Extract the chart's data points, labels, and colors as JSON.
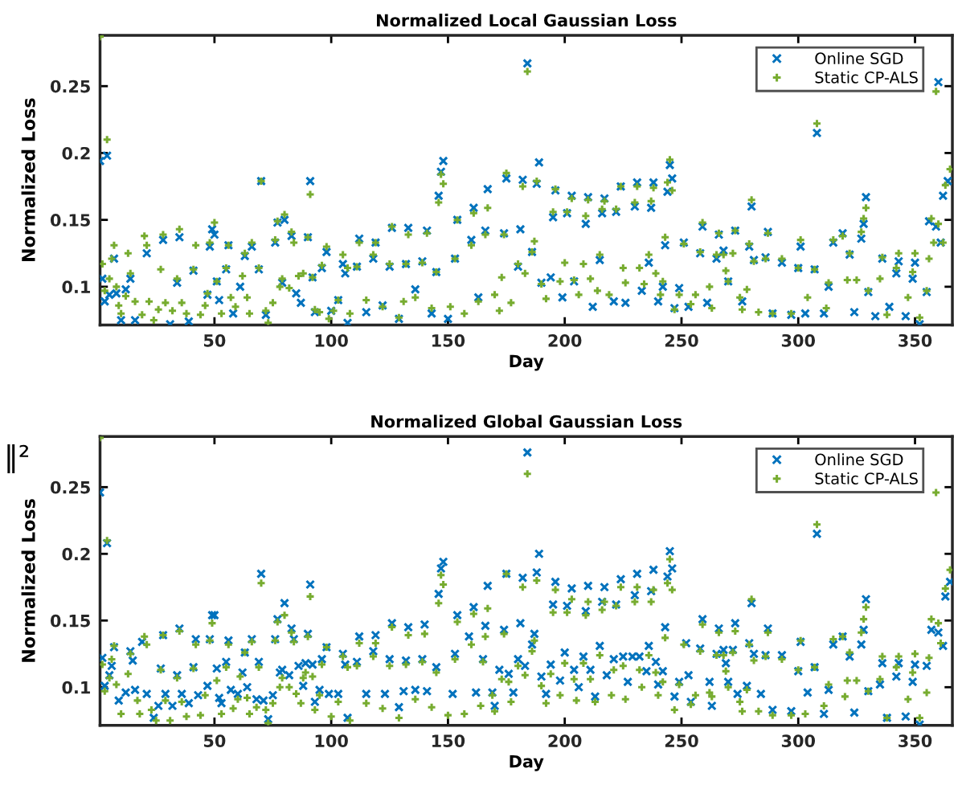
{
  "chart_data": [
    {
      "type": "scatter",
      "title": "Normalized Local Gaussian Loss",
      "xlabel": "Day",
      "ylabel": "Normalized Loss",
      "xlim": [
        1,
        366
      ],
      "ylim": [
        0.0714,
        0.288
      ],
      "xticks": [
        50,
        100,
        150,
        200,
        250,
        300,
        350
      ],
      "yticks": [
        0.1,
        0.15,
        0.2,
        0.25
      ],
      "grid": false,
      "legend": "top right",
      "series": [
        {
          "name": "Online SGD",
          "color": "#0072bd",
          "marker": "cross",
          "x": [
            1,
            4,
            2,
            3,
            5,
            8,
            7,
            10,
            12,
            14,
            16,
            21,
            28,
            31,
            34,
            35,
            39,
            41,
            48,
            49,
            50,
            47,
            51,
            52,
            55,
            56,
            58,
            61,
            63,
            66,
            69,
            70,
            72,
            77,
            76,
            79,
            80,
            83,
            85,
            87,
            90,
            91,
            92,
            93,
            96,
            98,
            100,
            103,
            105,
            106,
            107,
            112,
            111,
            115,
            118,
            119,
            122,
            125,
            126,
            129,
            132,
            133,
            136,
            139,
            141,
            143,
            145,
            146,
            147,
            148,
            150,
            153,
            154,
            160,
            161,
            163,
            166,
            167,
            175,
            174,
            180,
            182,
            181,
            184,
            186,
            188,
            189,
            190,
            194,
            195,
            196,
            199,
            201,
            203,
            204,
            209,
            210,
            212,
            215,
            216,
            217,
            221,
            222,
            224,
            226,
            230,
            231,
            233,
            237,
            238,
            236,
            240,
            242,
            243,
            244,
            245,
            246,
            247,
            249,
            251,
            253,
            258,
            259,
            261,
            265,
            266,
            268,
            270,
            273,
            276,
            279,
            280,
            281,
            286,
            287,
            289,
            293,
            297,
            301,
            300,
            303,
            307,
            308,
            311,
            315,
            313,
            319,
            322,
            324,
            327,
            328,
            329,
            330,
            333,
            336,
            339,
            342,
            343,
            346,
            349,
            350,
            352,
            355,
            356,
            359,
            361,
            362,
            364,
            360
          ],
          "values": [
            0.194,
            0.198,
            0.106,
            0.089,
            0.094,
            0.095,
            0.121,
            0.075,
            0.098,
            0.106,
            0.075,
            0.125,
            0.135,
            0.072,
            0.103,
            0.137,
            0.074,
            0.112,
            0.13,
            0.143,
            0.139,
            0.094,
            0.104,
            0.09,
            0.113,
            0.131,
            0.08,
            0.1,
            0.123,
            0.13,
            0.113,
            0.179,
            0.079,
            0.148,
            0.133,
            0.103,
            0.15,
            0.138,
            0.095,
            0.088,
            0.137,
            0.179,
            0.107,
            0.081,
            0.114,
            0.126,
            0.082,
            0.09,
            0.117,
            0.11,
            0.073,
            0.136,
            0.115,
            0.081,
            0.121,
            0.133,
            0.086,
            0.115,
            0.144,
            0.076,
            0.117,
            0.144,
            0.098,
            0.119,
            0.142,
            0.08,
            0.111,
            0.168,
            0.186,
            0.194,
            0.076,
            0.121,
            0.15,
            0.135,
            0.159,
            0.092,
            0.142,
            0.173,
            0.181,
            0.14,
            0.115,
            0.18,
            0.143,
            0.267,
            0.126,
            0.177,
            0.193,
            0.103,
            0.107,
            0.152,
            0.172,
            0.092,
            0.155,
            0.168,
            0.104,
            0.147,
            0.167,
            0.085,
            0.12,
            0.155,
            0.166,
            0.089,
            0.156,
            0.175,
            0.088,
            0.16,
            0.178,
            0.097,
            0.159,
            0.178,
            0.118,
            0.089,
            0.1,
            0.131,
            0.171,
            0.191,
            0.181,
            0.084,
            0.099,
            0.133,
            0.085,
            0.125,
            0.145,
            0.088,
            0.121,
            0.139,
            0.127,
            0.104,
            0.142,
            0.089,
            0.13,
            0.16,
            0.12,
            0.122,
            0.141,
            0.08,
            0.118,
            0.079,
            0.13,
            0.114,
            0.08,
            0.113,
            0.215,
            0.08,
            0.133,
            0.1,
            0.14,
            0.124,
            0.081,
            0.136,
            0.147,
            0.167,
            0.096,
            0.078,
            0.121,
            0.085,
            0.11,
            0.119,
            0.078,
            0.106,
            0.118,
            0.072,
            0.096,
            0.149,
            0.145,
            0.133,
            0.168,
            0.179,
            0.253
          ]
        },
        {
          "name": "Static CP-ALS",
          "color": "#77ac30",
          "marker": "plus",
          "x": [
            1,
            2,
            4,
            3,
            6,
            7,
            5,
            8,
            9,
            10,
            12,
            13,
            14,
            16,
            19,
            20,
            21,
            22,
            24,
            26,
            27,
            28,
            29,
            32,
            34,
            35,
            36,
            38,
            41,
            42,
            44,
            46,
            47,
            48,
            50,
            51,
            53,
            55,
            56,
            57,
            59,
            62,
            63,
            64,
            66,
            65,
            69,
            70,
            72,
            73,
            75,
            76,
            77,
            78,
            79,
            80,
            82,
            83,
            84,
            86,
            88,
            90,
            91,
            92,
            93,
            95,
            96,
            98,
            99,
            101,
            103,
            105,
            107,
            108,
            111,
            112,
            115,
            118,
            119,
            122,
            125,
            126,
            129,
            131,
            132,
            133,
            136,
            139,
            141,
            143,
            145,
            146,
            147,
            148,
            151,
            153,
            154,
            157,
            160,
            161,
            163,
            166,
            167,
            170,
            172,
            173,
            175,
            174,
            177,
            180,
            182,
            183,
            184,
            186,
            187,
            188,
            190,
            192,
            195,
            196,
            198,
            201,
            200,
            204,
            203,
            206,
            208,
            209,
            210,
            211,
            214,
            215,
            216,
            217,
            219,
            222,
            224,
            225,
            226,
            230,
            231,
            232,
            234,
            236,
            237,
            238,
            239,
            241,
            242,
            243,
            244,
            245,
            246,
            247,
            249,
            251,
            254,
            256,
            259,
            258,
            262,
            263,
            265,
            266,
            268,
            269,
            270,
            272,
            273,
            275,
            276,
            278,
            279,
            280,
            281,
            283,
            286,
            287,
            289,
            293,
            297,
            301,
            300,
            304,
            307,
            308,
            312,
            313,
            315,
            319,
            321,
            322,
            325,
            327,
            328,
            329,
            330,
            335,
            336,
            338,
            342,
            343,
            347,
            349,
            350,
            352,
            355,
            356,
            357,
            358,
            360,
            362,
            363,
            365,
            359
          ],
          "values": [
            0.287,
            0.117,
            0.21,
            0.097,
            0.121,
            0.131,
            0.106,
            0.1,
            0.086,
            0.08,
            0.093,
            0.125,
            0.11,
            0.089,
            0.079,
            0.138,
            0.131,
            0.089,
            0.075,
            0.083,
            0.113,
            0.139,
            0.088,
            0.082,
            0.106,
            0.143,
            0.088,
            0.08,
            0.113,
            0.131,
            0.079,
            0.086,
            0.095,
            0.133,
            0.148,
            0.104,
            0.08,
            0.114,
            0.131,
            0.092,
            0.085,
            0.108,
            0.125,
            0.092,
            0.133,
            0.08,
            0.114,
            0.179,
            0.082,
            0.073,
            0.088,
            0.135,
            0.149,
            0.1,
            0.106,
            0.154,
            0.099,
            0.141,
            0.133,
            0.108,
            0.11,
            0.137,
            0.169,
            0.107,
            0.083,
            0.081,
            0.116,
            0.13,
            0.076,
            0.082,
            0.09,
            0.124,
            0.114,
            0.08,
            0.115,
            0.133,
            0.09,
            0.124,
            0.133,
            0.085,
            0.117,
            0.145,
            0.077,
            0.089,
            0.117,
            0.139,
            0.092,
            0.118,
            0.14,
            0.084,
            0.111,
            0.163,
            0.184,
            0.177,
            0.085,
            0.121,
            0.15,
            0.08,
            0.131,
            0.155,
            0.089,
            0.139,
            0.159,
            0.094,
            0.082,
            0.107,
            0.185,
            0.139,
            0.088,
            0.117,
            0.175,
            0.11,
            0.261,
            0.126,
            0.134,
            0.179,
            0.102,
            0.091,
            0.156,
            0.173,
            0.104,
            0.156,
            0.118,
            0.105,
            0.166,
            0.094,
            0.117,
            0.153,
            0.165,
            0.106,
            0.097,
            0.124,
            0.158,
            0.164,
            0.094,
            0.158,
            0.175,
            0.114,
            0.103,
            0.163,
            0.175,
            0.114,
            0.102,
            0.124,
            0.164,
            0.174,
            0.11,
            0.094,
            0.104,
            0.137,
            0.178,
            0.195,
            0.172,
            0.083,
            0.094,
            0.132,
            0.087,
            0.094,
            0.148,
            0.126,
            0.1,
            0.084,
            0.124,
            0.14,
            0.124,
            0.112,
            0.104,
            0.125,
            0.142,
            0.092,
            0.083,
            0.098,
            0.132,
            0.165,
            0.119,
            0.081,
            0.121,
            0.14,
            0.08,
            0.121,
            0.08,
            0.135,
            0.114,
            0.092,
            0.113,
            0.222,
            0.084,
            0.103,
            0.135,
            0.138,
            0.105,
            0.125,
            0.105,
            0.141,
            0.151,
            0.159,
            0.097,
            0.106,
            0.122,
            0.079,
            0.114,
            0.125,
            0.092,
            0.111,
            0.125,
            0.077,
            0.097,
            0.121,
            0.151,
            0.133,
            0.147,
            0.133,
            0.176,
            0.188,
            0.246
          ]
        }
      ]
    },
    {
      "type": "scatter",
      "title": "Normalized Global Gaussian Loss",
      "xlabel": "Day",
      "ylabel": "Normalized Loss",
      "xlim": [
        1,
        366
      ],
      "ylim": [
        0.0714,
        0.288
      ],
      "xticks": [
        50,
        100,
        150,
        200,
        250,
        300,
        350
      ],
      "yticks": [
        0.1,
        0.15,
        0.2,
        0.25
      ],
      "grid": false,
      "legend": "top right",
      "annotations": [
        "‖²"
      ],
      "series": [
        {
          "name": "Online SGD",
          "color": "#0072bd",
          "marker": "cross",
          "x": [
            1,
            2,
            4,
            3,
            5,
            6,
            7,
            9,
            12,
            14,
            15,
            16,
            19,
            21,
            24,
            26,
            27,
            28,
            29,
            32,
            34,
            35,
            36,
            39,
            41,
            42,
            43,
            47,
            48,
            49,
            50,
            51,
            52,
            53,
            55,
            56,
            57,
            60,
            62,
            63,
            64,
            66,
            68,
            69,
            70,
            71,
            73,
            75,
            76,
            77,
            78,
            79,
            80,
            82,
            83,
            84,
            86,
            88,
            89,
            90,
            91,
            92,
            93,
            95,
            96,
            98,
            99,
            103,
            105,
            106,
            107,
            111,
            112,
            115,
            118,
            119,
            123,
            125,
            126,
            129,
            131,
            132,
            133,
            136,
            139,
            140,
            141,
            145,
            146,
            147,
            148,
            152,
            153,
            154,
            159,
            161,
            162,
            166,
            167,
            165,
            169,
            170,
            172,
            175,
            174,
            176,
            178,
            180,
            182,
            181,
            183,
            184,
            186,
            187,
            188,
            189,
            190,
            192,
            194,
            195,
            196,
            198,
            200,
            201,
            203,
            204,
            206,
            208,
            209,
            210,
            211,
            213,
            215,
            216,
            217,
            218,
            221,
            222,
            224,
            225,
            227,
            229,
            230,
            231,
            232,
            235,
            236,
            237,
            238,
            239,
            240,
            242,
            243,
            244,
            245,
            246,
            247,
            249,
            252,
            253,
            254,
            258,
            259,
            262,
            263,
            265,
            266,
            268,
            269,
            270,
            272,
            273,
            274,
            278,
            279,
            280,
            281,
            284,
            286,
            287,
            289,
            293,
            297,
            300,
            301,
            304,
            307,
            308,
            311,
            315,
            313,
            319,
            322,
            324,
            327,
            328,
            329,
            330,
            335,
            336,
            338,
            342,
            343,
            346,
            349,
            350,
            352,
            355,
            357,
            360,
            362,
            363,
            365
          ],
          "values": [
            0.246,
            0.122,
            0.208,
            0.101,
            0.109,
            0.116,
            0.13,
            0.09,
            0.096,
            0.127,
            0.12,
            0.098,
            0.134,
            0.095,
            0.077,
            0.086,
            0.114,
            0.139,
            0.095,
            0.086,
            0.109,
            0.144,
            0.095,
            0.088,
            0.115,
            0.136,
            0.094,
            0.101,
            0.136,
            0.154,
            0.154,
            0.114,
            0.092,
            0.088,
            0.119,
            0.135,
            0.098,
            0.095,
            0.111,
            0.126,
            0.1,
            0.136,
            0.091,
            0.119,
            0.185,
            0.09,
            0.076,
            0.094,
            0.136,
            0.151,
            0.111,
            0.113,
            0.163,
            0.109,
            0.144,
            0.136,
            0.116,
            0.101,
            0.118,
            0.14,
            0.177,
            0.117,
            0.089,
            0.098,
            0.121,
            0.13,
            0.095,
            0.095,
            0.125,
            0.117,
            0.077,
            0.119,
            0.138,
            0.095,
            0.127,
            0.139,
            0.095,
            0.121,
            0.148,
            0.085,
            0.097,
            0.12,
            0.145,
            0.098,
            0.121,
            0.147,
            0.097,
            0.115,
            0.17,
            0.189,
            0.194,
            0.095,
            0.125,
            0.154,
            0.138,
            0.16,
            0.096,
            0.146,
            0.176,
            0.121,
            0.096,
            0.086,
            0.113,
            0.185,
            0.143,
            0.11,
            0.096,
            0.121,
            0.182,
            0.148,
            0.116,
            0.276,
            0.132,
            0.14,
            0.186,
            0.2,
            0.108,
            0.095,
            0.117,
            0.162,
            0.179,
            0.105,
            0.126,
            0.161,
            0.174,
            0.113,
            0.1,
            0.123,
            0.157,
            0.176,
            0.113,
            0.093,
            0.131,
            0.164,
            0.175,
            0.109,
            0.121,
            0.162,
            0.181,
            0.123,
            0.104,
            0.123,
            0.169,
            0.185,
            0.123,
            0.112,
            0.131,
            0.172,
            0.188,
            0.119,
            0.102,
            0.112,
            0.145,
            0.183,
            0.202,
            0.189,
            0.093,
            0.104,
            0.133,
            0.109,
            0.089,
            0.129,
            0.151,
            0.104,
            0.086,
            0.125,
            0.144,
            0.128,
            0.118,
            0.104,
            0.128,
            0.148,
            0.095,
            0.101,
            0.133,
            0.163,
            0.125,
            0.095,
            0.124,
            0.144,
            0.083,
            0.124,
            0.082,
            0.112,
            0.134,
            0.096,
            0.115,
            0.215,
            0.08,
            0.132,
            0.098,
            0.138,
            0.123,
            0.081,
            0.132,
            0.143,
            0.166,
            0.097,
            0.102,
            0.118,
            0.077,
            0.108,
            0.118,
            0.078,
            0.104,
            0.117,
            0.072,
            0.116,
            0.143,
            0.141,
            0.131,
            0.168,
            0.179
          ]
        },
        {
          "name": "Static CP-ALS",
          "color": "#77ac30",
          "marker": "plus",
          "x": [
            1,
            2,
            3,
            4,
            5,
            6,
            7,
            8,
            10,
            13,
            14,
            17,
            18,
            20,
            21,
            23,
            25,
            27,
            28,
            29,
            31,
            34,
            35,
            36,
            38,
            41,
            42,
            44,
            46,
            48,
            49,
            51,
            53,
            55,
            56,
            58,
            60,
            61,
            63,
            64,
            65,
            66,
            68,
            69,
            70,
            72,
            73,
            75,
            76,
            77,
            78,
            79,
            80,
            82,
            83,
            84,
            85,
            87,
            88,
            89,
            90,
            91,
            92,
            93,
            95,
            96,
            98,
            100,
            103,
            105,
            107,
            108,
            111,
            112,
            115,
            118,
            119,
            122,
            125,
            126,
            129,
            132,
            133,
            136,
            139,
            140,
            143,
            145,
            146,
            147,
            148,
            150,
            153,
            154,
            157,
            160,
            161,
            164,
            166,
            167,
            165,
            169,
            170,
            173,
            175,
            174,
            176,
            177,
            180,
            182,
            183,
            184,
            186,
            187,
            188,
            190,
            192,
            194,
            195,
            196,
            198,
            200,
            201,
            203,
            204,
            205,
            208,
            209,
            210,
            211,
            213,
            215,
            216,
            217,
            220,
            221,
            222,
            224,
            225,
            226,
            230,
            231,
            232,
            233,
            236,
            237,
            238,
            239,
            240,
            242,
            243,
            244,
            245,
            246,
            247,
            249,
            251,
            254,
            256,
            259,
            258,
            262,
            263,
            265,
            266,
            268,
            269,
            270,
            272,
            273,
            275,
            276,
            278,
            279,
            280,
            281,
            283,
            286,
            287,
            289,
            293,
            297,
            301,
            300,
            303,
            307,
            308,
            311,
            313,
            315,
            319,
            320,
            321,
            322,
            325,
            327,
            328,
            329,
            330,
            335,
            336,
            338,
            342,
            343,
            347,
            349,
            350,
            352,
            355,
            356,
            357,
            360,
            361,
            363,
            365,
            359
          ],
          "values": [
            0.287,
            0.117,
            0.097,
            0.21,
            0.107,
            0.121,
            0.131,
            0.102,
            0.08,
            0.11,
            0.125,
            0.09,
            0.08,
            0.138,
            0.132,
            0.083,
            0.075,
            0.113,
            0.139,
            0.09,
            0.075,
            0.107,
            0.142,
            0.089,
            0.078,
            0.114,
            0.132,
            0.079,
            0.094,
            0.135,
            0.148,
            0.105,
            0.08,
            0.115,
            0.132,
            0.084,
            0.091,
            0.108,
            0.126,
            0.092,
            0.08,
            0.134,
            0.085,
            0.115,
            0.178,
            0.083,
            0.073,
            0.088,
            0.135,
            0.149,
            0.1,
            0.107,
            0.154,
            0.1,
            0.141,
            0.134,
            0.095,
            0.088,
            0.107,
            0.111,
            0.138,
            0.168,
            0.108,
            0.083,
            0.094,
            0.117,
            0.13,
            0.078,
            0.089,
            0.123,
            0.115,
            0.075,
            0.116,
            0.133,
            0.088,
            0.123,
            0.133,
            0.084,
            0.116,
            0.145,
            0.077,
            0.117,
            0.139,
            0.091,
            0.119,
            0.14,
            0.085,
            0.111,
            0.163,
            0.184,
            0.177,
            0.079,
            0.121,
            0.149,
            0.08,
            0.132,
            0.155,
            0.086,
            0.138,
            0.159,
            0.119,
            0.094,
            0.082,
            0.106,
            0.185,
            0.14,
            0.104,
            0.089,
            0.116,
            0.175,
            0.109,
            0.26,
            0.127,
            0.135,
            0.18,
            0.101,
            0.088,
            0.11,
            0.156,
            0.173,
            0.094,
            0.118,
            0.156,
            0.166,
            0.106,
            0.09,
            0.118,
            0.154,
            0.164,
            0.106,
            0.089,
            0.124,
            0.158,
            0.164,
            0.094,
            0.113,
            0.161,
            0.175,
            0.116,
            0.091,
            0.164,
            0.175,
            0.113,
            0.1,
            0.124,
            0.164,
            0.173,
            0.111,
            0.094,
            0.104,
            0.137,
            0.178,
            0.196,
            0.173,
            0.083,
            0.102,
            0.132,
            0.087,
            0.094,
            0.147,
            0.127,
            0.096,
            0.093,
            0.124,
            0.141,
            0.124,
            0.112,
            0.1,
            0.126,
            0.142,
            0.089,
            0.082,
            0.098,
            0.132,
            0.166,
            0.12,
            0.082,
            0.123,
            0.141,
            0.079,
            0.121,
            0.079,
            0.135,
            0.113,
            0.08,
            0.115,
            0.222,
            0.086,
            0.102,
            0.136,
            0.138,
            0.093,
            0.105,
            0.126,
            0.105,
            0.141,
            0.151,
            0.16,
            0.097,
            0.106,
            0.123,
            0.077,
            0.115,
            0.123,
            0.091,
            0.111,
            0.125,
            0.077,
            0.096,
            0.122,
            0.151,
            0.148,
            0.133,
            0.174,
            0.188,
            0.246
          ]
        }
      ]
    }
  ]
}
